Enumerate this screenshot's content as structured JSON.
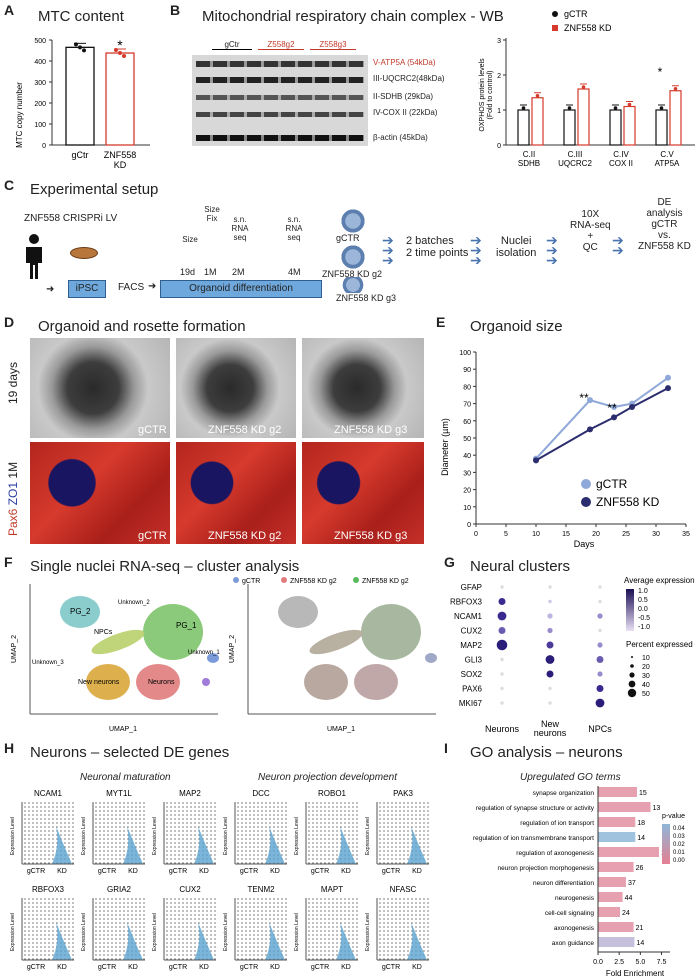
{
  "panels": {
    "A": {
      "label": "A",
      "title": "MTC content",
      "ylabel": "MTC copy number",
      "yticks": [
        "0",
        "100",
        "200",
        "300",
        "400",
        "500"
      ],
      "groups": [
        "gCtr",
        "ZNF558\nKD"
      ],
      "star": "*"
    },
    "B": {
      "label": "B",
      "title": "Mitochondrial respiratory chain complex - WB",
      "lanes": [
        "gCtr",
        "Z558g2",
        "Z558g3"
      ],
      "bands": [
        "V-ATP5A (54kDa)",
        "III-UQCRC2(48kDa)",
        "II-SDHB (29kDa)",
        "IV-COX II (22kDa)",
        "β-actin (45kDa)"
      ],
      "legend": [
        "gCTR",
        "ZNF558 KD"
      ],
      "ylabel": "OXPHOS protein levels\n(Fold to control)",
      "yticks": [
        "0",
        "1",
        "2",
        "3"
      ],
      "cats": [
        "C.II\nSDHB",
        "C.III\nUQCRC2",
        "C.IV\nCOX II",
        "C.V\nATP5A"
      ],
      "star": "*"
    },
    "C": {
      "label": "C",
      "title": "Experimental setup",
      "lv": "ZNF558 CRISPRi LV",
      "steps": [
        "iPSC",
        "FACS",
        "Organoid differentiation"
      ],
      "timepoints": [
        "Size",
        "Size\nFix",
        "s.n.\nRNA\nseq",
        "s.n.\nRNA\nseq"
      ],
      "times": [
        "19d",
        "1M",
        "2M",
        "4M"
      ],
      "groups": [
        "gCTR",
        "ZNF558 KD g2",
        "ZNF558 KD g3"
      ],
      "flow": [
        "2 batches\n2 time points",
        "Nuclei\nisolation",
        "10X\nRNA-seq\n+\nQC",
        "DE\nanalysis\ngCTR\nvs.\nZNF558 KD"
      ]
    },
    "D": {
      "label": "D",
      "title": "Organoid and rosette formation",
      "row1": "19 days",
      "row2a": "Pax6",
      "row2b": "ZO1",
      "row2c": "1M",
      "cols": [
        "gCTR",
        "ZNF558 KD g2",
        "ZNF558 KD g3"
      ]
    },
    "E": {
      "label": "E",
      "title": "Organoid size",
      "ylabel": "Diameter (µm)",
      "xlabel": "Days",
      "yticks": [
        "0",
        "10",
        "20",
        "30",
        "40",
        "50",
        "60",
        "70",
        "80",
        "90",
        "100"
      ],
      "xticks": [
        "0",
        "5",
        "10",
        "15",
        "20",
        "25",
        "30",
        "35"
      ],
      "legend": [
        "gCTR",
        "ZNF558 KD"
      ],
      "stars": [
        "**",
        "**"
      ]
    },
    "F": {
      "label": "F",
      "title": "Single nuclei RNA-seq – cluster analysis",
      "clusters": [
        "PG_2",
        "Unknown_2",
        "PG_1",
        "NPCs",
        "Unknown_3",
        "Unknown_1",
        "New neurons",
        "Neurons"
      ],
      "xlabel": "UMAP_1",
      "ylabel": "UMAP_2",
      "legend": [
        "gCTR",
        "ZNF558 KD g2",
        "ZNF558 KD g2"
      ],
      "xticks": [
        "-10",
        "0",
        "10"
      ],
      "yticks": [
        "-5",
        "0",
        "5",
        "10"
      ]
    },
    "G": {
      "label": "G",
      "title": "Neural clusters",
      "genes": [
        "GFAP",
        "RBFOX3",
        "NCAM1",
        "CUX2",
        "MAP2",
        "GLI3",
        "SOX2",
        "PAX6",
        "MKI67"
      ],
      "cols": [
        "Neurons",
        "New\nneurons",
        "NPCs"
      ],
      "legend_title1": "Average expression",
      "legend_vals1": [
        "1.0",
        "0.5",
        "0.0",
        "-0.5",
        "-1.0"
      ],
      "legend_title2": "Percent expressed",
      "legend_vals2": [
        "10",
        "20",
        "30",
        "40",
        "50"
      ]
    },
    "H": {
      "label": "H",
      "title": "Neurons – selected DE genes",
      "sub1": "Neuronal maturation",
      "sub2": "Neuron projection development",
      "genes_row1": [
        "NCAM1",
        "MYT1L",
        "MAP2",
        "DCC",
        "ROBO1",
        "PAK3"
      ],
      "genes_row2": [
        "RBFOX3",
        "GRIA2",
        "CUX2",
        "TENM2",
        "MAPT",
        "NFASC"
      ],
      "ylabel": "Expression Level",
      "groups": [
        "gCTR",
        "KD"
      ]
    },
    "I": {
      "label": "I",
      "title": "GO analysis – neurons",
      "subtitle": "Upregulated GO terms",
      "xlabel": "Fold Enrichment",
      "xticks": [
        "0.0",
        "2.5",
        "5.0",
        "7.5"
      ],
      "legend_title": "p-value",
      "legend_vals": [
        "0.04",
        "0.03",
        "0.02",
        "0.01",
        "0.00"
      ]
    }
  },
  "chart_data": [
    {
      "type": "bar",
      "title": "MTC content",
      "ylabel": "MTC copy number",
      "categories": [
        "gCtr",
        "ZNF558 KD"
      ],
      "values": [
        465,
        438
      ],
      "ylim": [
        0,
        500
      ]
    },
    {
      "type": "bar",
      "title": "",
      "ylabel": "OXPHOS protein levels (Fold to control)",
      "categories": [
        "C.II SDHB",
        "C.III UQCRC2",
        "C.IV COX II",
        "C.V ATP5A"
      ],
      "series": [
        {
          "name": "gCTR",
          "values": [
            1.0,
            1.0,
            1.0,
            1.0
          ]
        },
        {
          "name": "ZNF558 KD",
          "values": [
            1.35,
            1.6,
            1.1,
            1.55
          ]
        }
      ],
      "ylim": [
        0,
        3
      ]
    },
    {
      "type": "line",
      "title": "Organoid size",
      "xlabel": "Days",
      "ylabel": "Diameter (µm)",
      "xlim": [
        0,
        35
      ],
      "ylim": [
        0,
        100
      ],
      "series": [
        {
          "name": "gCTR",
          "x": [
            10,
            19,
            23,
            26,
            32
          ],
          "y": [
            38,
            72,
            68,
            70,
            85
          ]
        },
        {
          "name": "ZNF558 KD",
          "x": [
            10,
            19,
            23,
            26,
            32
          ],
          "y": [
            37,
            55,
            62,
            68,
            79
          ]
        }
      ]
    },
    {
      "type": "bar",
      "title": "Upregulated GO terms",
      "xlabel": "Fold Enrichment",
      "categories": [
        "synapse organization",
        "regulation of synapse structure or activity",
        "regulation of ion transport",
        "regulation of ion transmembrane transport",
        "regulation of axonogenesis",
        "neuron projection morphogenesis",
        "neuron differentiation",
        "neurogenesis",
        "cell-cell signaling",
        "axonogenesis",
        "axon guidance"
      ],
      "values": [
        4.6,
        6.2,
        4.4,
        4.4,
        7.2,
        4.2,
        3.3,
        2.9,
        2.6,
        4.2,
        4.3
      ],
      "labels": [
        "15",
        "13",
        "18",
        "14",
        "13",
        "26",
        "37",
        "44",
        "24",
        "21",
        "14"
      ],
      "xlim": [
        0,
        8.5
      ]
    }
  ]
}
